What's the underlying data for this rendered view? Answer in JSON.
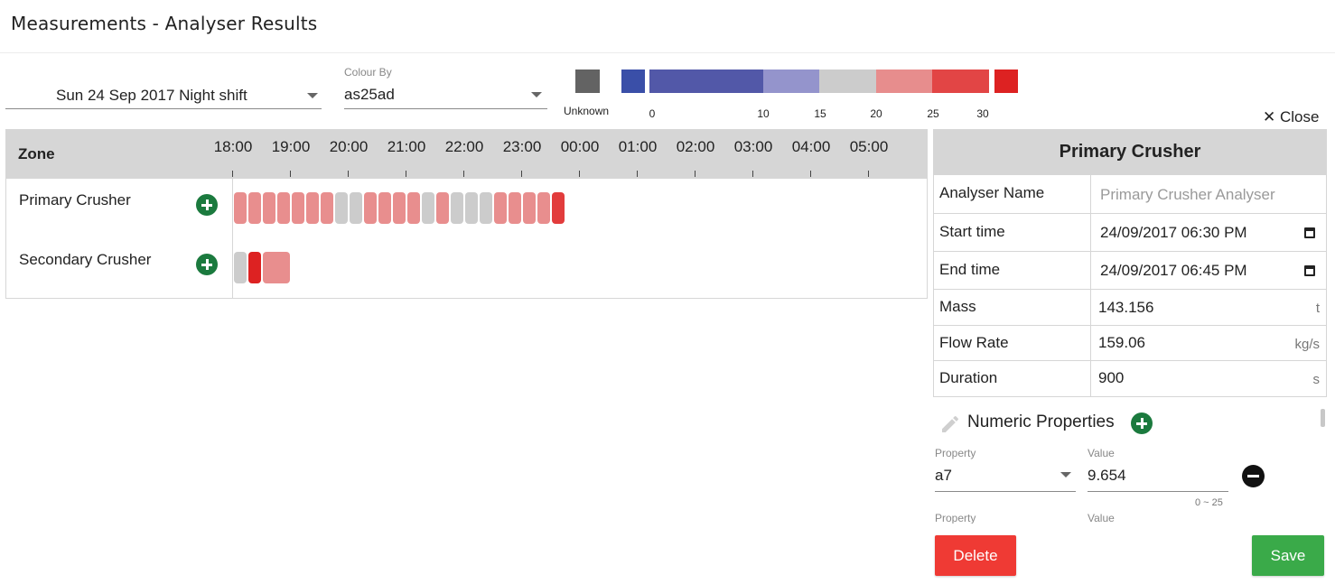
{
  "page": {
    "title": "Measurements - Analyser Results"
  },
  "filters": {
    "shift_value": "Sun 24 Sep 2017 Night shift",
    "colour_by_label": "Colour By",
    "colour_by_value": "as25ad"
  },
  "legend": {
    "unknown_label": "Unknown",
    "unknown_color": "#636363",
    "ticks": [
      "0",
      "10",
      "15",
      "20",
      "25",
      "30"
    ],
    "segment_colors": [
      "#3a4fa8",
      "#5258a8",
      "#9494cc",
      "#cccccc",
      "#e78d8d",
      "#e24545",
      "#dd2222"
    ]
  },
  "close_label": "Close",
  "timeline": {
    "zone_header": "Zone",
    "hours": [
      "18:00",
      "19:00",
      "20:00",
      "21:00",
      "22:00",
      "23:00",
      "00:00",
      "01:00",
      "02:00",
      "03:00",
      "04:00",
      "05:00"
    ],
    "zones": [
      {
        "name": "Primary Crusher",
        "blocks": [
          "pink",
          "pink",
          "pink",
          "pink",
          "pink",
          "pink",
          "pink",
          "grey",
          "grey",
          "pink",
          "pink",
          "pink",
          "pink",
          "grey",
          "pink",
          "grey",
          "grey",
          "grey",
          "pink",
          "pink",
          "pink",
          "pink",
          "red"
        ]
      },
      {
        "name": "Secondary Crusher",
        "blocks": [
          "grey",
          "darkred",
          "pinkwide"
        ]
      }
    ]
  },
  "block_colors": {
    "pink": "#e88e8e",
    "grey": "#cccccc",
    "red": "#e23c3c",
    "darkred": "#dd2222"
  },
  "panel": {
    "title": "Primary Crusher",
    "analyser_name_label": "Analyser Name",
    "analyser_name_placeholder": "Primary Crusher Analyser",
    "start_label": "Start time",
    "start_value": "24/09/2017 06:30 PM",
    "end_label": "End time",
    "end_value": "24/09/2017 06:45 PM",
    "mass_label": "Mass",
    "mass_value": "143.156",
    "mass_unit": "t",
    "flow_label": "Flow Rate",
    "flow_value": "159.06",
    "flow_unit": "kg/s",
    "duration_label": "Duration",
    "duration_value": "900",
    "duration_unit": "s"
  },
  "numeric": {
    "title": "Numeric Properties",
    "property_label": "Property",
    "value_label": "Value",
    "property_value": "a7",
    "value_value": "9.654",
    "range": "0 ~ 25",
    "property_label_2": "Property",
    "value_label_2": "Value"
  },
  "actions": {
    "delete_label": "Delete",
    "save_label": "Save"
  }
}
